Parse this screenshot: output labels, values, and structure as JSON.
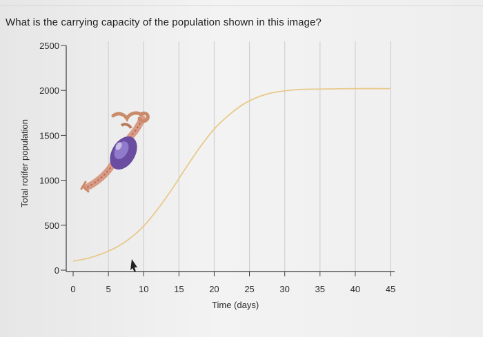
{
  "question": "What is the carrying capacity of the population shown in this image?",
  "chart_data": {
    "type": "line",
    "title": "",
    "xlabel": "Time (days)",
    "ylabel": "Total rotifer population",
    "x_ticks": [
      0,
      5,
      10,
      15,
      20,
      25,
      30,
      35,
      40,
      45
    ],
    "y_ticks": [
      0,
      500,
      1000,
      1500,
      2000,
      2500
    ],
    "xlim": [
      0,
      45
    ],
    "ylim": [
      0,
      2500
    ],
    "grid": "vertical",
    "line_color": "#e9c98a",
    "series": [
      {
        "x": [
          0,
          2,
          4,
          6,
          8,
          10,
          12,
          14,
          16,
          18,
          20,
          22,
          24,
          26,
          28,
          30,
          32,
          35,
          40,
          45
        ],
        "values": [
          100,
          130,
          180,
          250,
          350,
          490,
          680,
          900,
          1140,
          1370,
          1570,
          1720,
          1840,
          1920,
          1970,
          1995,
          2010,
          2015,
          2020,
          2020
        ]
      }
    ],
    "image": "rotifer-organism"
  }
}
